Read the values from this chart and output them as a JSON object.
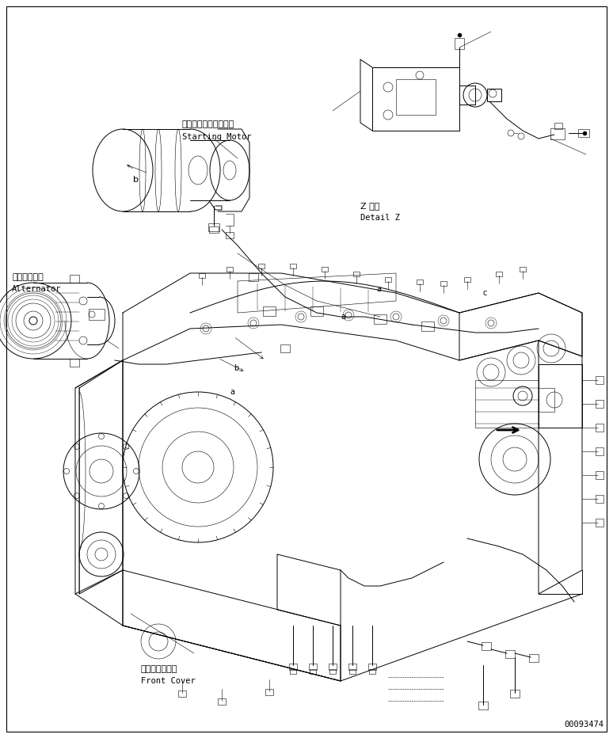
{
  "background_color": "#ffffff",
  "line_color": "#000000",
  "figure_width": 7.74,
  "figure_height": 9.32,
  "dpi": 100,
  "part_number": "00093474",
  "label_starting_motor_jp": "スターティングモータ",
  "label_starting_motor_en": "Starting Motor",
  "label_alternator_jp": "オルタネータ",
  "label_alternator_en": "Alternator",
  "label_detail_z_jp": "Z 詳細",
  "label_detail_z_en": "Detail Z",
  "label_front_cover_jp": "フロントカバー",
  "label_front_cover_en": "Front Cover"
}
